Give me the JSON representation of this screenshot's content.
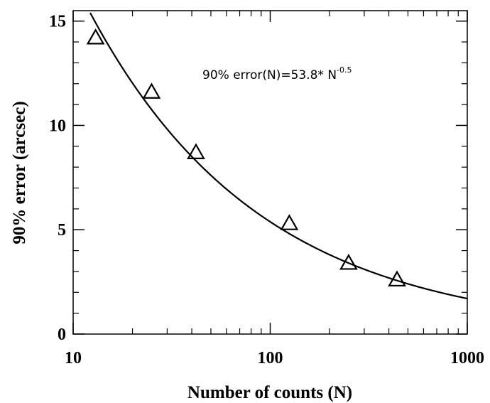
{
  "chart_data": {
    "type": "scatter",
    "xscale": "log",
    "xlim": [
      10,
      1000
    ],
    "ylim": [
      0,
      15.5
    ],
    "x_ticks": [
      {
        "value": 10,
        "label": "10"
      },
      {
        "value": 100,
        "label": "100"
      },
      {
        "value": 1000,
        "label": "1000"
      }
    ],
    "y_ticks": [
      {
        "value": 0,
        "label": "0"
      },
      {
        "value": 5,
        "label": "5"
      },
      {
        "value": 10,
        "label": "10"
      },
      {
        "value": 15,
        "label": "15"
      }
    ],
    "xlabel": "Number of counts (N)",
    "ylabel": "90% error (arcsec)",
    "series": [
      {
        "marker": "triangle-open",
        "points": [
          {
            "x": 13,
            "y": 14.2
          },
          {
            "x": 25,
            "y": 11.6
          },
          {
            "x": 42,
            "y": 8.7
          },
          {
            "x": 125,
            "y": 5.3
          },
          {
            "x": 250,
            "y": 3.4
          },
          {
            "x": 440,
            "y": 2.6
          }
        ]
      },
      {
        "kind": "fit-curve",
        "function": "53.8 * N^-0.5",
        "coefficient": 53.8,
        "exponent": -0.5
      }
    ],
    "annotation": {
      "text": "90% error(N)=53.8* N",
      "superscript": "-0.5"
    },
    "grid": false,
    "legend": "none",
    "colors": {
      "line": "#000000",
      "marker": "#000000"
    }
  }
}
